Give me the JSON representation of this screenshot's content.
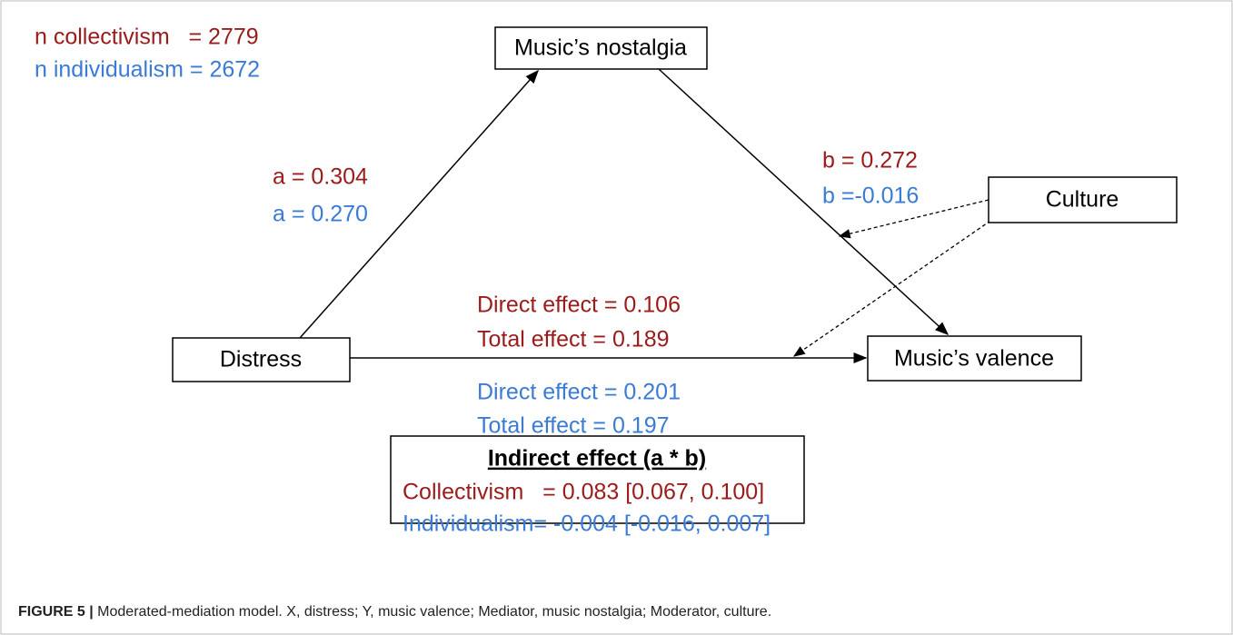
{
  "sample_sizes": {
    "collectivism": "n collectivism   = 2779",
    "individualism": "n individualism = 2672"
  },
  "nodes": [
    {
      "label": "Music’s nostalgia"
    },
    {
      "label": "Distress"
    },
    {
      "label": "Music’s valence"
    },
    {
      "label": "Culture"
    }
  ],
  "paths": {
    "a": {
      "collectivism": "a = 0.304",
      "individualism": "a = 0.270"
    },
    "b": {
      "collectivism": "b = 0.272",
      "individualism": "b =-0.016"
    },
    "c": {
      "collectivism": [
        "Direct effect = 0.106",
        "Total effect = 0.189"
      ],
      "individualism": [
        "Direct effect = 0.201",
        "Total effect = 0.197"
      ]
    }
  },
  "indirect_effect": {
    "title": "Indirect effect (a * b)",
    "collectivism": "Collectivism   = 0.083 [0.067, 0.100]",
    "individualism": "Individualism= -0.004 [-0.016, 0.007]"
  },
  "caption": {
    "label": "FIGURE 5 |",
    "text": " Moderated-mediation model. X, distress; Y, music valence; Mediator, music nostalgia; Moderator, culture."
  }
}
